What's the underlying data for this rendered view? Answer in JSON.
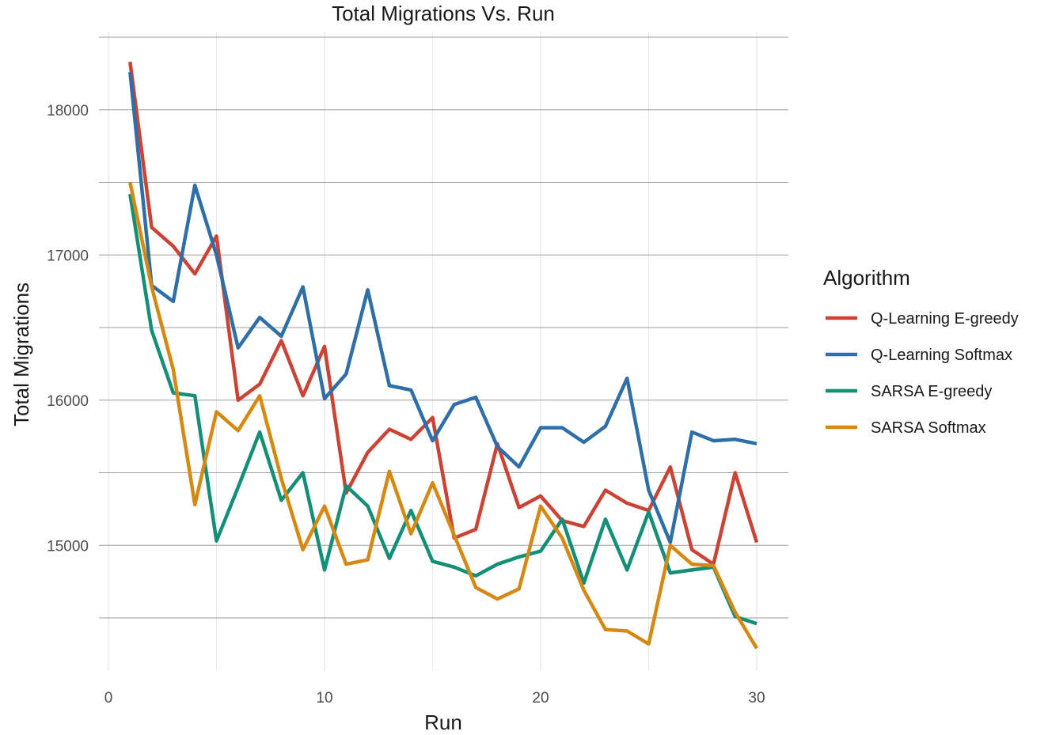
{
  "chart_data": {
    "type": "line",
    "title": "Total Migrations Vs. Run",
    "xlabel": "Run",
    "ylabel": "Total Migrations",
    "xlim": [
      0,
      30
    ],
    "ylim": [
      14300,
      18400
    ],
    "x_ticks": [
      0,
      10,
      20,
      30
    ],
    "y_ticks": [
      15000,
      16000,
      17000,
      18000
    ],
    "y_minor_ticks": [
      14500,
      15500,
      16500,
      17500,
      18500
    ],
    "grid": true,
    "legend": {
      "title": "Algorithm",
      "position": "right"
    },
    "x": [
      1,
      2,
      3,
      4,
      5,
      6,
      7,
      8,
      9,
      10,
      11,
      12,
      13,
      14,
      15,
      16,
      17,
      18,
      19,
      20,
      21,
      22,
      23,
      24,
      25,
      26,
      27,
      28,
      29,
      30
    ],
    "series": [
      {
        "name": "Q-Learning E-greedy",
        "color": "#cb4335",
        "values": [
          18330,
          17190,
          17060,
          16870,
          17130,
          16000,
          16110,
          16410,
          16030,
          16370,
          15360,
          15640,
          15800,
          15730,
          15880,
          15050,
          15110,
          15700,
          15260,
          15340,
          15170,
          15130,
          15380,
          15290,
          15240,
          15540,
          14970,
          14870,
          15500,
          15020
        ]
      },
      {
        "name": "Q-Learning Softmax",
        "color": "#2e6fa7",
        "values": [
          18260,
          16790,
          16680,
          17480,
          17000,
          16360,
          16570,
          16440,
          16780,
          16010,
          16180,
          16760,
          16100,
          16070,
          15720,
          15970,
          16020,
          15680,
          15540,
          15810,
          15810,
          15710,
          15820,
          16150,
          15380,
          15020,
          15780,
          15720,
          15730,
          15700
        ]
      },
      {
        "name": "SARSA E-greedy",
        "color": "#148f77",
        "values": [
          17420,
          16480,
          16050,
          16030,
          15030,
          15400,
          15780,
          15310,
          15500,
          14830,
          15410,
          15270,
          14910,
          15240,
          14890,
          14850,
          14790,
          14870,
          14920,
          14960,
          15180,
          14740,
          15180,
          14830,
          15230,
          14810,
          14830,
          14850,
          14510,
          14460
        ]
      },
      {
        "name": "SARSA Softmax",
        "color": "#d68910",
        "values": [
          17500,
          16780,
          16210,
          15280,
          15920,
          15790,
          16030,
          15460,
          14970,
          15270,
          14870,
          14900,
          15510,
          15080,
          15430,
          15070,
          14710,
          14630,
          14700,
          15270,
          15050,
          14690,
          14420,
          14410,
          14320,
          15000,
          14870,
          14860,
          14540,
          14290
        ]
      }
    ]
  }
}
